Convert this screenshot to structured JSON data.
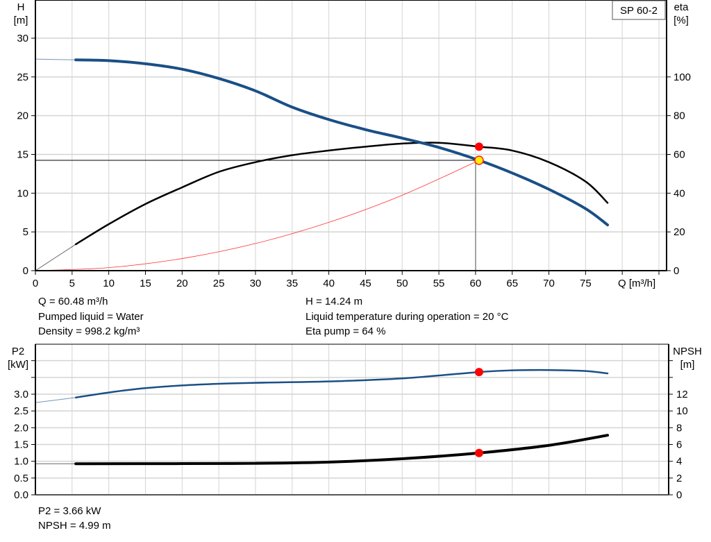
{
  "chart_data": [
    {
      "type": "line",
      "title": "",
      "legend_box": "SP 60-2",
      "xlabel": "Q [m³/h]",
      "ylabel_left": [
        "H",
        "[m]"
      ],
      "ylabel_right": [
        "eta",
        "[%]"
      ],
      "xlim": [
        0,
        85
      ],
      "ylim_left": [
        0,
        30
      ],
      "ylim_right": [
        0,
        120
      ],
      "x_ticks": [
        0,
        5,
        10,
        15,
        20,
        25,
        30,
        35,
        40,
        45,
        50,
        55,
        60,
        65,
        70,
        75
      ],
      "y_ticks_left": [
        0,
        5,
        10,
        15,
        20,
        25,
        30
      ],
      "y_ticks_right": [
        0,
        20,
        40,
        60,
        80,
        100
      ],
      "grid": true,
      "series": [
        {
          "axis": "left",
          "color": "#1a4f86",
          "x": [
            5.5,
            10,
            15,
            20,
            25,
            30,
            35,
            40,
            45,
            50,
            55,
            60.48,
            65,
            70,
            75,
            78
          ],
          "y": [
            27.2,
            27.1,
            26.7,
            26.0,
            24.8,
            23.2,
            21.1,
            19.5,
            18.2,
            17.1,
            15.9,
            14.24,
            12.6,
            10.5,
            8.0,
            5.9
          ],
          "extrapolated": {
            "x": [
              0,
              5.5
            ],
            "y": [
              27.3,
              27.2
            ]
          }
        },
        {
          "axis": "right",
          "color": "#000000",
          "x": [
            5.5,
            10,
            15,
            20,
            25,
            30,
            35,
            40,
            45,
            50,
            55,
            60.48,
            65,
            70,
            75,
            78
          ],
          "y": [
            13.6,
            24,
            34.4,
            43,
            51,
            56,
            59.6,
            62,
            64,
            65.6,
            66,
            64,
            62,
            56,
            46,
            35
          ],
          "extrapolated": {
            "x": [
              0,
              5.5
            ],
            "y": [
              0,
              13.6
            ]
          }
        },
        {
          "axis": "left",
          "color": "#ff3030",
          "kind": "system-curve",
          "x": [
            0,
            10,
            20,
            30,
            40,
            50,
            60.48
          ],
          "y": [
            0,
            0.39,
            1.56,
            3.5,
            6.23,
            9.73,
            14.24
          ]
        }
      ],
      "duty_point": {
        "Q": 60.48,
        "H": 14.24,
        "eta": 64
      },
      "info_lines": {
        "q": "Q = 60.48 m³/h",
        "liquid": "Pumped liquid = Water",
        "density": "Density = 998.2 kg/m³",
        "h": "H = 14.24 m",
        "temp": "Liquid temperature during operation = 20 °C",
        "eta": "Eta pump = 64 %"
      }
    },
    {
      "type": "line",
      "title": "",
      "ylabel_left": [
        "P2",
        "[kW]"
      ],
      "ylabel_right": [
        "NPSH",
        "[m]"
      ],
      "xlim": [
        0,
        85
      ],
      "ylim_left": [
        0,
        4.5
      ],
      "ylim_right": [
        0,
        18
      ],
      "y_ticks_left": [
        "0.0",
        "0.5",
        "1.0",
        "1.5",
        "2.0",
        "2.5",
        "3.0"
      ],
      "y_ticks_right": [
        0,
        2,
        4,
        6,
        8,
        10,
        12
      ],
      "grid": true,
      "series": [
        {
          "axis": "left",
          "color": "#1a4f86",
          "x": [
            5.5,
            10,
            15,
            20,
            25,
            30,
            40,
            50,
            60.48,
            65,
            70,
            75,
            78
          ],
          "y": [
            2.9,
            3.05,
            3.18,
            3.26,
            3.31,
            3.34,
            3.38,
            3.47,
            3.66,
            3.71,
            3.72,
            3.69,
            3.62
          ],
          "extrapolated": {
            "x": [
              0,
              5.5
            ],
            "y": [
              2.75,
              2.9
            ]
          }
        },
        {
          "axis": "right",
          "color": "#000000",
          "x": [
            5.5,
            20,
            30,
            40,
            50,
            60.48,
            70,
            78
          ],
          "y": [
            3.7,
            3.72,
            3.75,
            3.9,
            4.3,
            4.99,
            5.9,
            7.1
          ],
          "extrapolated": {
            "x": [
              0,
              5.5
            ],
            "y": [
              3.7,
              3.7
            ]
          }
        }
      ],
      "duty_point": {
        "Q": 60.48,
        "P2": 3.66,
        "NPSH": 4.99
      },
      "info_lines": {
        "p2": "P2 = 3.66 kW",
        "npsh": "NPSH = 4.99 m"
      }
    }
  ]
}
